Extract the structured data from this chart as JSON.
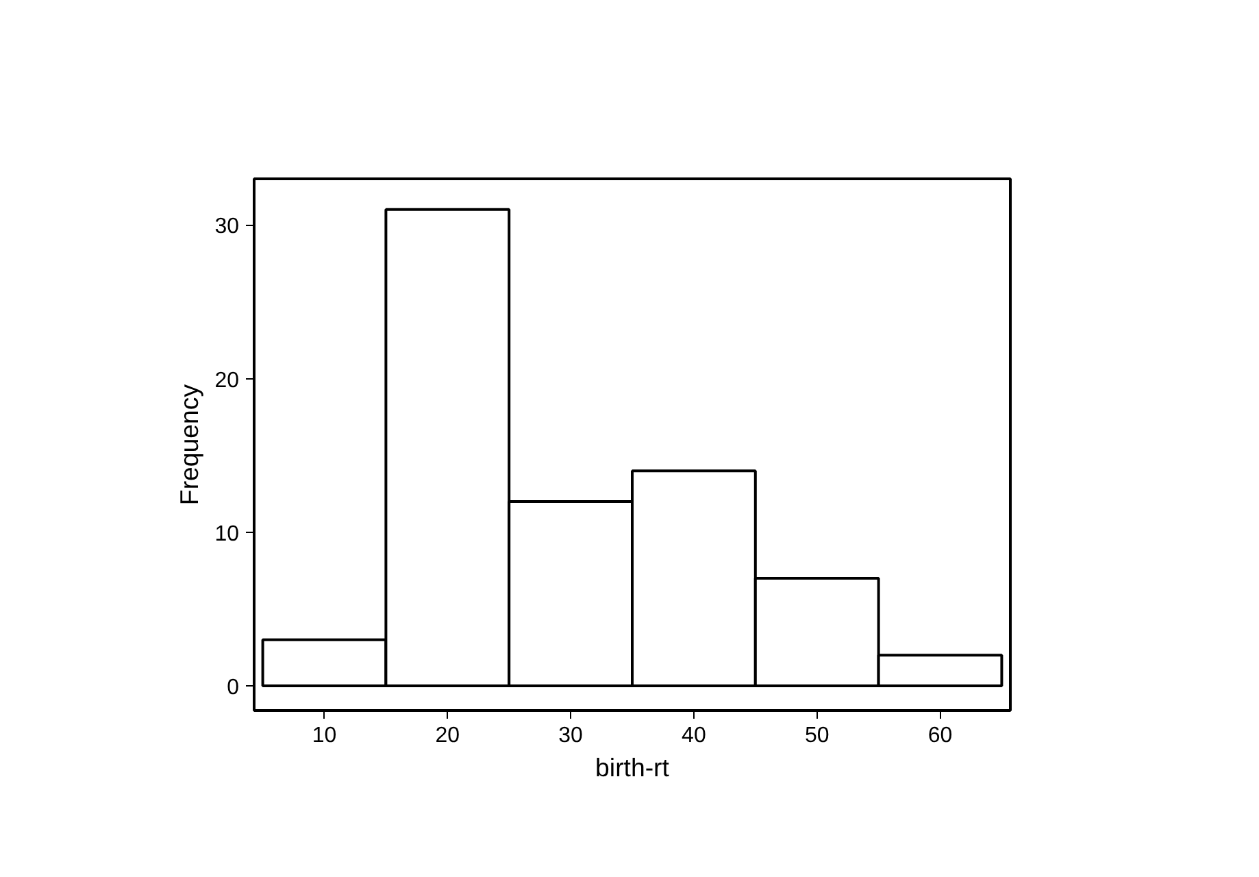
{
  "chart_data": {
    "type": "histogram",
    "xlabel": "birth-rt",
    "ylabel": "Frequency",
    "bins": [
      5,
      15,
      25,
      35,
      45,
      55,
      65
    ],
    "values": [
      3,
      31,
      12,
      14,
      7,
      2
    ],
    "color": "#ffffff",
    "xlim": [
      4.3,
      65.7
    ],
    "ylim": [
      -1.6,
      33
    ],
    "xticks": [
      10,
      20,
      30,
      40,
      50,
      60
    ],
    "yticks": [
      0,
      10,
      20,
      30
    ],
    "grid": false
  }
}
